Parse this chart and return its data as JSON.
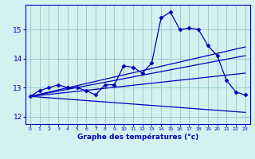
{
  "xlabel": "Graphe des températures (°c)",
  "bg_color": "#d4f0f0",
  "line_color": "#0000bb",
  "grid_color": "#99cccc",
  "xlim": [
    -0.5,
    23.5
  ],
  "ylim": [
    11.75,
    15.85
  ],
  "yticks": [
    12,
    13,
    14,
    15
  ],
  "xticks": [
    0,
    1,
    2,
    3,
    4,
    5,
    6,
    7,
    8,
    9,
    10,
    11,
    12,
    13,
    14,
    15,
    16,
    17,
    18,
    19,
    20,
    21,
    22,
    23
  ],
  "series1_x": [
    0,
    1,
    2,
    3,
    4,
    5,
    6,
    7,
    8,
    9,
    10,
    11,
    12,
    13,
    14,
    15,
    16,
    17,
    18,
    19,
    20,
    21,
    22,
    23
  ],
  "series1_y": [
    12.7,
    12.9,
    13.0,
    13.1,
    13.0,
    13.0,
    12.9,
    12.75,
    13.1,
    13.1,
    13.75,
    13.7,
    13.5,
    13.85,
    15.4,
    15.6,
    15.0,
    15.05,
    15.0,
    14.45,
    14.1,
    13.25,
    12.85,
    12.75
  ],
  "series2_x": [
    0,
    23
  ],
  "series2_y": [
    12.7,
    13.5
  ],
  "series3_x": [
    0,
    23
  ],
  "series3_y": [
    12.7,
    14.4
  ],
  "series4_x": [
    0,
    23
  ],
  "series4_y": [
    12.7,
    14.1
  ],
  "series5_x": [
    0,
    23
  ],
  "series5_y": [
    12.7,
    12.15
  ]
}
